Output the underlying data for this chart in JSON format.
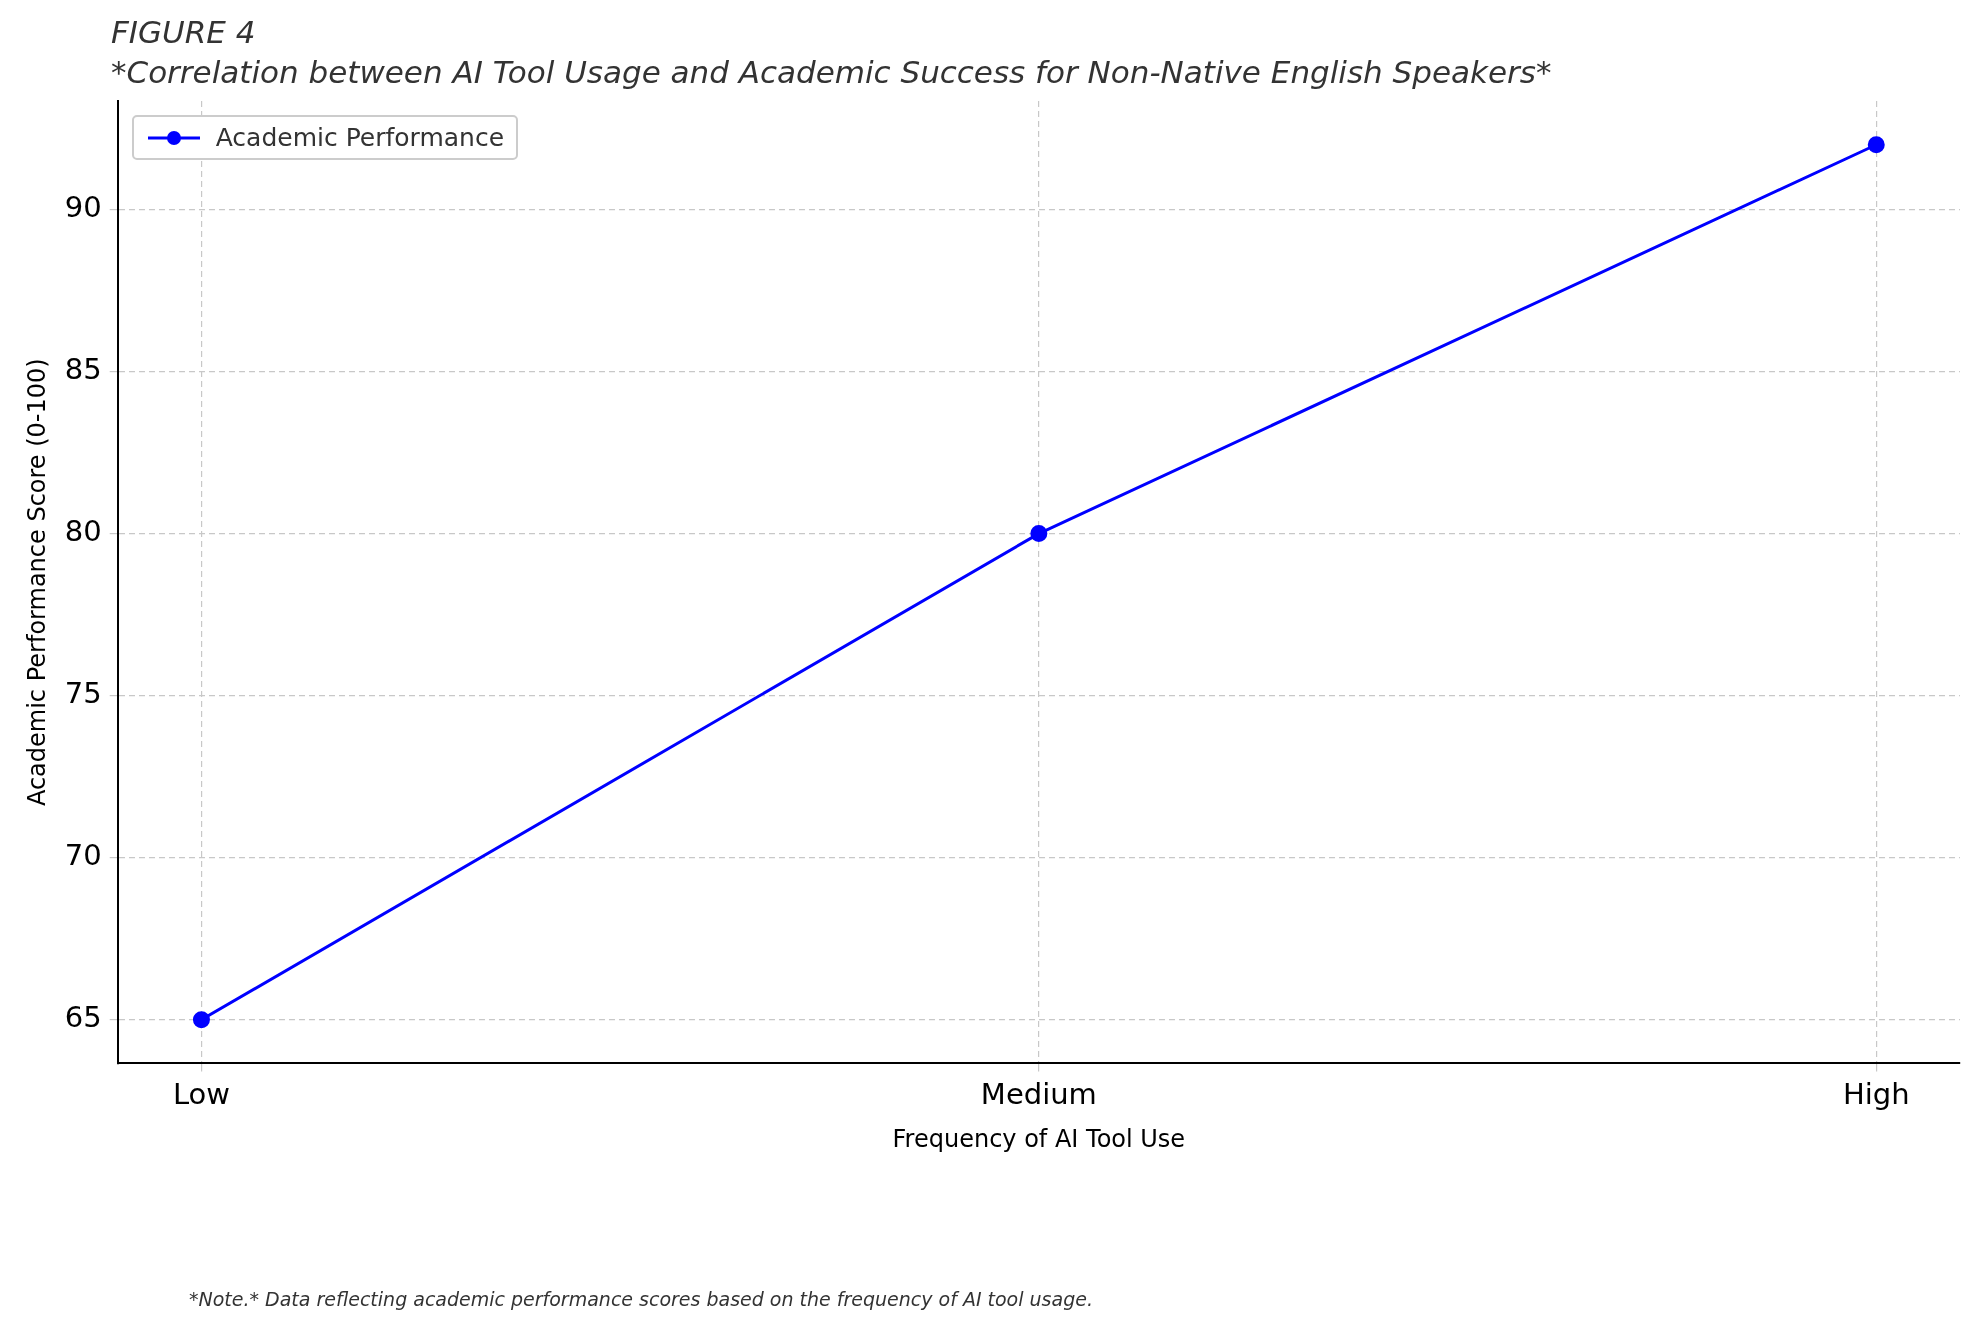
{
  "chart_data": {
    "type": "line",
    "title": "FIGURE 4",
    "subtitle": "*Correlation between AI Tool Usage and Academic Success for Non-Native English Speakers*",
    "xlabel": "Frequency of AI Tool Use",
    "ylabel": "Academic Performance Score (0-100)",
    "categories": [
      "Low",
      "Medium",
      "High"
    ],
    "series": [
      {
        "name": "Academic Performance",
        "color": "#0000ff",
        "values": [
          65,
          80,
          92
        ]
      }
    ],
    "ylim": [
      63.65,
      93.35
    ],
    "yticks": [
      65,
      70,
      75,
      80,
      85,
      90
    ],
    "grid": true,
    "legend": "top left",
    "marker": "circle",
    "line_style": "solid",
    "annotations": [
      "*Note.* Data reflecting academic performance scores based on the frequency of AI tool usage."
    ]
  }
}
